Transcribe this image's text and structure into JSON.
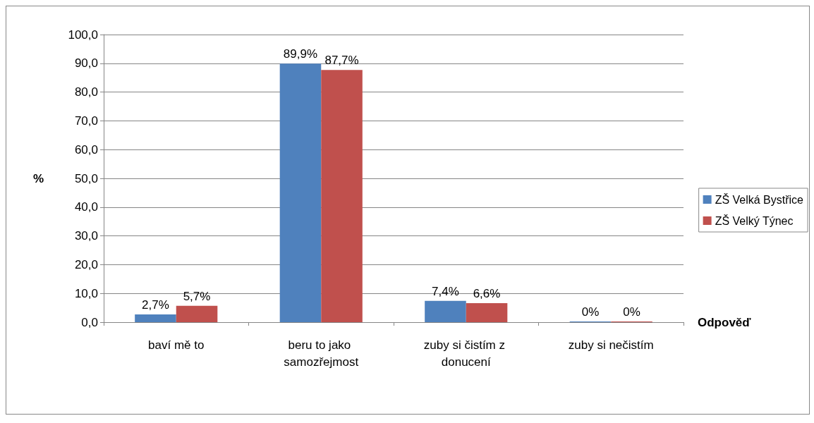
{
  "chart_data": {
    "type": "bar",
    "xlabel": "Odpověď",
    "ylabel": "%",
    "categories": [
      "baví mě to",
      "beru to jako samozřejmost",
      "zuby si čistím z donucení",
      "zuby si nečistím"
    ],
    "series": [
      {
        "name": "ZŠ Velká Bystřice",
        "color": "#4f81bd",
        "values": [
          2.7,
          89.9,
          7.4,
          0
        ],
        "value_labels": [
          "2,7%",
          "89,9%",
          "7,4%",
          "0%"
        ]
      },
      {
        "name": "ZŠ Velký Týnec",
        "color": "#c0504d",
        "values": [
          5.7,
          87.7,
          6.6,
          0
        ],
        "value_labels": [
          "5,7%",
          "87,7%",
          "6,6%",
          "0%"
        ]
      }
    ],
    "ylim": [
      0,
      100
    ],
    "yticks": [
      {
        "value": 0,
        "label": "0,0"
      },
      {
        "value": 10,
        "label": "10,0"
      },
      {
        "value": 20,
        "label": "20,0"
      },
      {
        "value": 30,
        "label": "30,0"
      },
      {
        "value": 40,
        "label": "40,0"
      },
      {
        "value": 50,
        "label": "50,0"
      },
      {
        "value": 60,
        "label": "60,0"
      },
      {
        "value": 70,
        "label": "70,0"
      },
      {
        "value": 80,
        "label": "80,0"
      },
      {
        "value": 90,
        "label": "90,0"
      },
      {
        "value": 100,
        "label": "100,0"
      }
    ],
    "grid": "y",
    "legend": "right"
  }
}
